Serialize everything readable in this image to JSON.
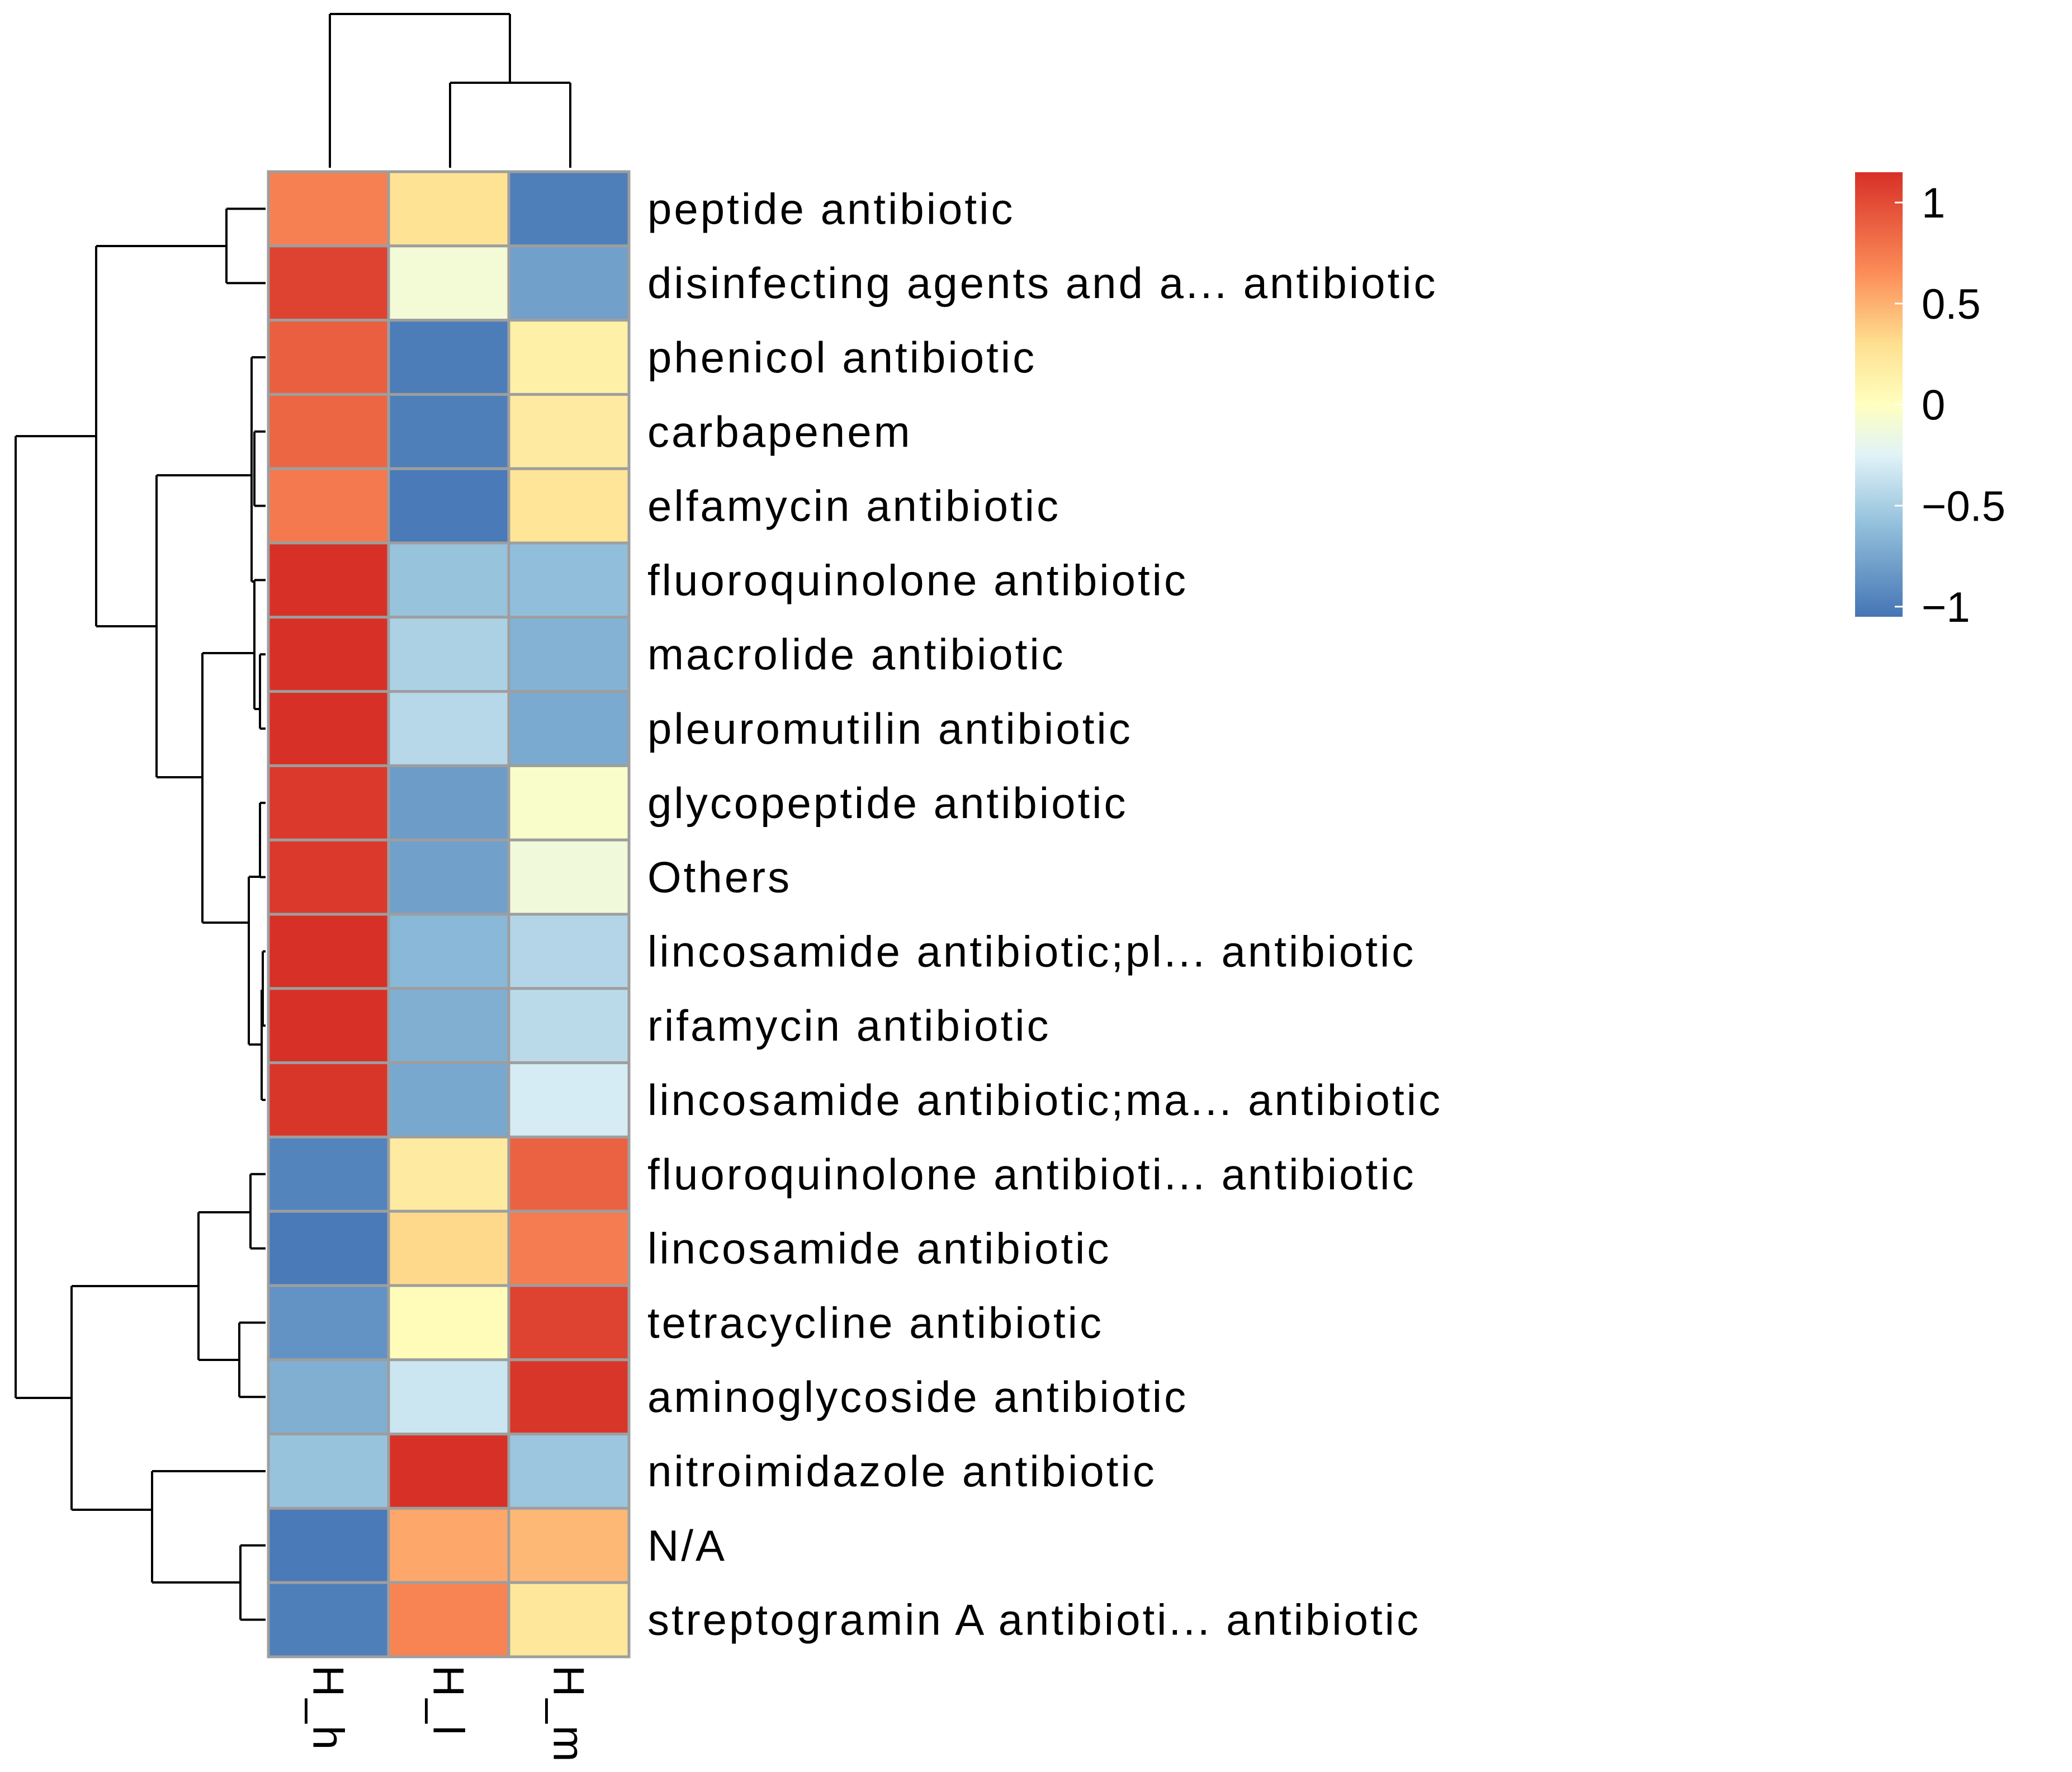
{
  "chart_data": {
    "type": "heatmap",
    "title": "",
    "columns": [
      "H_h",
      "H_l",
      "H_m"
    ],
    "rows": [
      "peptide antibiotic",
      "disinfecting agents and a... antibiotic",
      "phenicol antibiotic",
      "carbapenem",
      "elfamycin antibiotic",
      "fluoroquinolone antibiotic",
      "macrolide antibiotic",
      "pleuromutilin antibiotic",
      "glycopeptide antibiotic",
      "Others",
      "lincosamide antibiotic;pl... antibiotic",
      "rifamycin antibiotic",
      "lincosamide antibiotic;ma... antibiotic",
      "fluoroquinolone antibioti... antibiotic",
      "lincosamide antibiotic",
      "tetracycline antibiotic",
      "aminoglycoside antibiotic",
      "nitroimidazole antibiotic",
      "N/A",
      "streptogramin A antibioti... antibiotic"
    ],
    "values": [
      [
        0.72,
        0.27,
        -0.99
      ],
      [
        1.05,
        -0.1,
        -0.79
      ],
      [
        0.9,
        -1.0,
        0.15
      ],
      [
        0.86,
        -0.99,
        0.2
      ],
      [
        0.76,
        -1.02,
        0.25
      ],
      [
        1.15,
        -0.57,
        -0.6
      ],
      [
        1.15,
        -0.48,
        -0.68
      ],
      [
        1.15,
        -0.43,
        -0.73
      ],
      [
        1.1,
        -0.81,
        -0.05
      ],
      [
        1.1,
        -0.79,
        -0.12
      ],
      [
        1.15,
        -0.64,
        -0.45
      ],
      [
        1.15,
        -0.7,
        -0.42
      ],
      [
        1.12,
        -0.74,
        -0.3
      ],
      [
        -0.96,
        0.2,
        0.88
      ],
      [
        -1.02,
        0.33,
        0.74
      ],
      [
        -0.87,
        0.03,
        1.05
      ],
      [
        -0.7,
        -0.34,
        1.12
      ],
      [
        -0.57,
        1.15,
        -0.55
      ],
      [
        -1.02,
        0.54,
        0.47
      ],
      [
        -0.99,
        0.7,
        0.23
      ]
    ],
    "color_scale": {
      "min": -1.05,
      "max": 1.15,
      "stops": [
        {
          "value": -1.05,
          "color": "#4575b4"
        },
        {
          "value": -0.6,
          "color": "#91bfdb"
        },
        {
          "value": -0.25,
          "color": "#e0f3f8"
        },
        {
          "value": 0.0,
          "color": "#ffffbf"
        },
        {
          "value": 0.3,
          "color": "#fee090"
        },
        {
          "value": 0.65,
          "color": "#fc8d59"
        },
        {
          "value": 1.15,
          "color": "#d73027"
        }
      ]
    },
    "legend": {
      "position": "top-right",
      "ticks": [
        {
          "value": 1,
          "label": "1"
        },
        {
          "value": 0.5,
          "label": "0.5"
        },
        {
          "value": 0,
          "label": "0"
        },
        {
          "value": -0.5,
          "label": "−0.5"
        },
        {
          "value": -1,
          "label": "−1"
        }
      ]
    },
    "row_dendrogram": {
      "order_note": "hierarchical clustering of rows",
      "leaves": 20
    },
    "column_dendrogram": {
      "order_note": "hierarchical clustering of columns: H_l and H_m merge first, then H_h",
      "leaves": 3
    }
  }
}
